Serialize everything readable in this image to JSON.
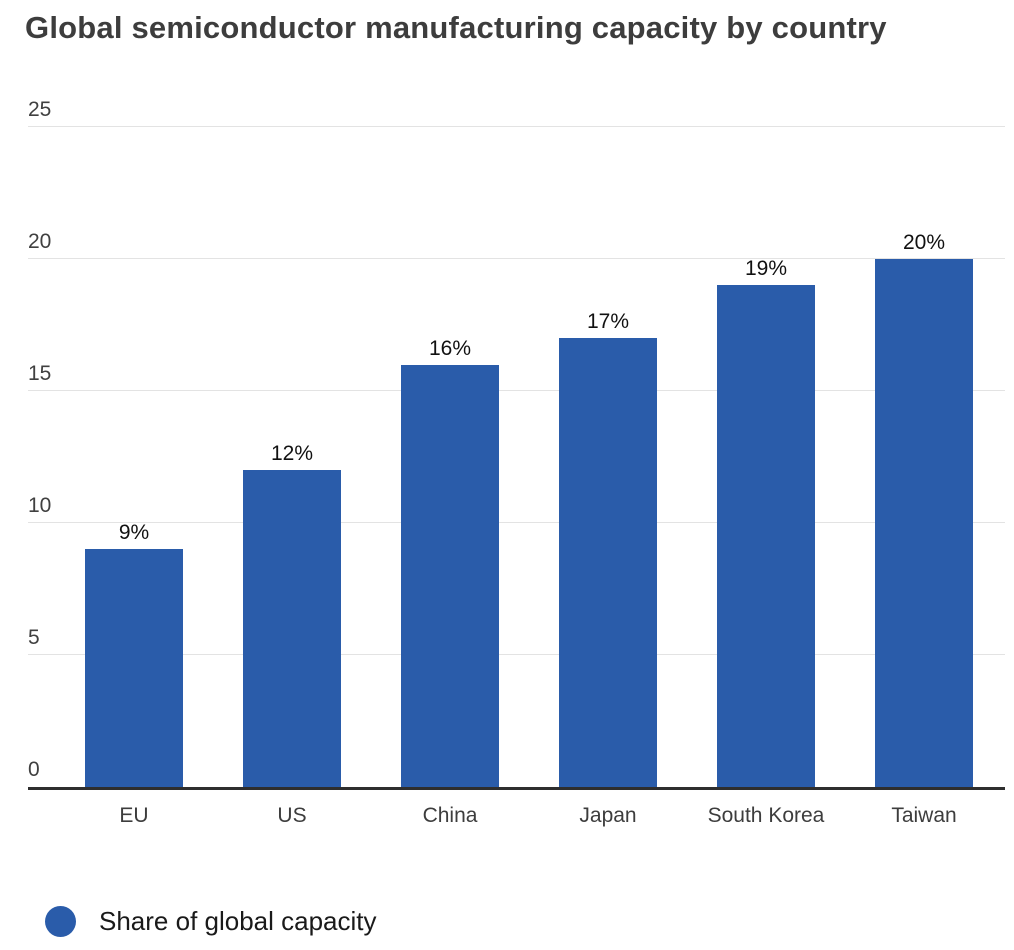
{
  "title": "Global semiconductor manufacturing capacity by country",
  "chart_data": {
    "type": "bar",
    "title": "Global semiconductor manufacturing capacity by country",
    "categories": [
      "EU",
      "US",
      "China",
      "Japan",
      "South Korea",
      "Taiwan"
    ],
    "values": [
      9,
      12,
      16,
      17,
      19,
      20
    ],
    "value_labels": [
      "9%",
      "12%",
      "16%",
      "17%",
      "19%",
      "20%"
    ],
    "xlabel": "",
    "ylabel": "",
    "ylim": [
      0,
      25
    ],
    "yticks": [
      0,
      5,
      10,
      15,
      20,
      25
    ],
    "ytick_labels": [
      "0",
      "5",
      "10",
      "15",
      "20",
      "25"
    ],
    "grid": true,
    "legend": {
      "label": "Share of global capacity",
      "position": "bottom-left",
      "marker": "circle-icon"
    },
    "colors": {
      "bar": "#2A5CAA",
      "gridline": "#e3e3e3",
      "axis_line": "#2e2e2e",
      "title_text": "#3d3d3d",
      "tick_text": "#404040",
      "value_label_text": "#111111",
      "legend_text": "#1a1a1a",
      "background": "#ffffff"
    }
  }
}
